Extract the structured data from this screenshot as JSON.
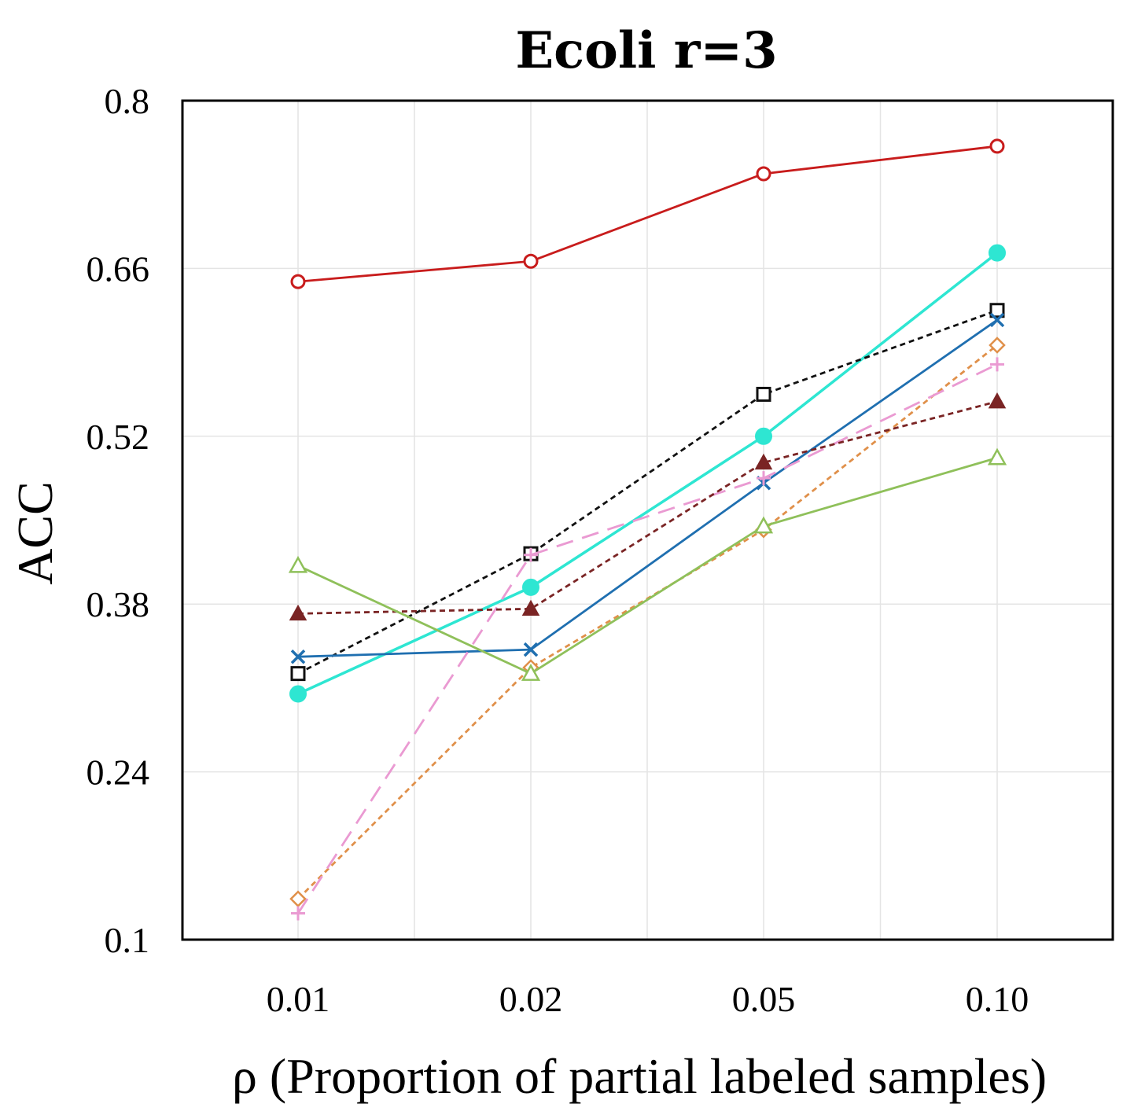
{
  "chart_data": {
    "type": "line",
    "title": "Ecoli r=3",
    "xlabel": "ρ (Proportion of partial labeled samples)",
    "ylabel": "ACC",
    "categories": [
      "0.01",
      "0.02",
      "0.05",
      "0.10"
    ],
    "yticks": [
      "0.1",
      "0.24",
      "0.38",
      "0.52",
      "0.66",
      "0.8"
    ],
    "ylim": [
      0.1,
      0.8
    ],
    "grid": true,
    "series": [
      {
        "name": "red-circle",
        "color": "#c81c1c",
        "dash": "solid",
        "marker": "circle-open",
        "values": [
          0.649,
          0.666,
          0.739,
          0.762
        ]
      },
      {
        "name": "cyan-filled-circle",
        "color": "#2ee6d2",
        "dash": "solid",
        "marker": "circle-filled",
        "values": [
          0.305,
          0.394,
          0.52,
          0.673
        ]
      },
      {
        "name": "black-square",
        "color": "#111111",
        "dash": "dashed",
        "marker": "square-open",
        "values": [
          0.322,
          0.422,
          0.555,
          0.625
        ]
      },
      {
        "name": "blue-x",
        "color": "#1f6fb0",
        "dash": "solid",
        "marker": "x",
        "values": [
          0.336,
          0.342,
          0.481,
          0.617
        ]
      },
      {
        "name": "orange-diamond",
        "color": "#e0904a",
        "dash": "dashed",
        "marker": "diamond-open",
        "values": [
          0.134,
          0.327,
          0.442,
          0.596
        ]
      },
      {
        "name": "pink-plus",
        "color": "#ea9ad2",
        "dash": "longdash",
        "marker": "plus",
        "values": [
          0.122,
          0.421,
          0.485,
          0.58
        ]
      },
      {
        "name": "darkred-triangle",
        "color": "#7a2424",
        "dash": "dashed",
        "marker": "triangle-filled",
        "values": [
          0.372,
          0.376,
          0.498,
          0.549
        ]
      },
      {
        "name": "green-triangle",
        "color": "#8fc05a",
        "dash": "solid",
        "marker": "triangle-open",
        "values": [
          0.412,
          0.322,
          0.445,
          0.502
        ]
      }
    ]
  }
}
